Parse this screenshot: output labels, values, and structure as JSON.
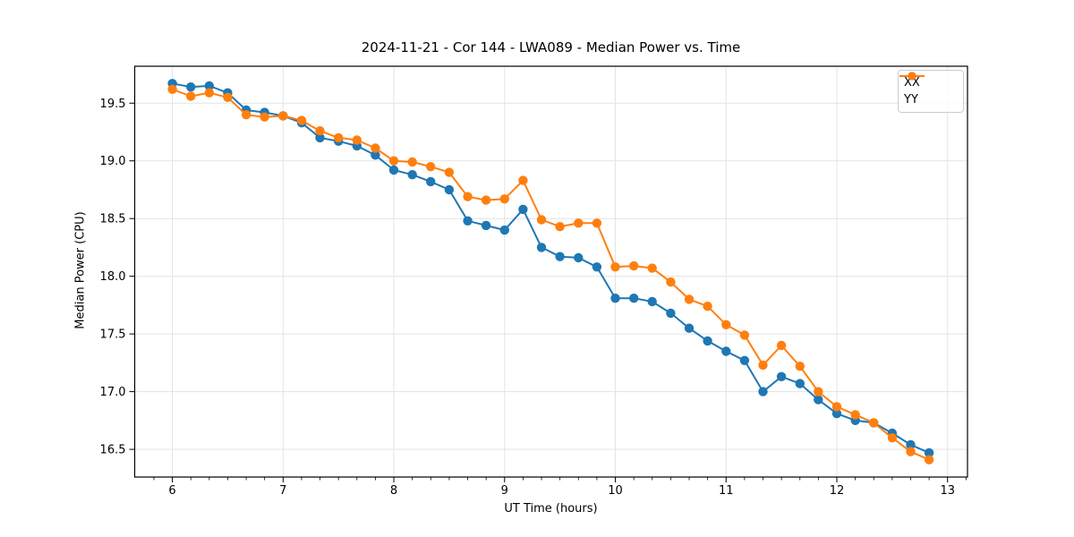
{
  "title": "2024-11-21 - Cor 144 - LWA089 - Median Power vs. Time",
  "chart_data": {
    "type": "line",
    "title": "2024-11-21 - Cor 144 - LWA089 - Median Power vs. Time",
    "xlabel": "UT Time (hours)",
    "ylabel": "Median Power (CPU)",
    "x": [
      6.0,
      6.167,
      6.333,
      6.5,
      6.667,
      6.833,
      7.0,
      7.167,
      7.333,
      7.5,
      7.667,
      7.833,
      8.0,
      8.167,
      8.333,
      8.5,
      8.667,
      8.833,
      9.0,
      9.167,
      9.333,
      9.5,
      9.667,
      9.833,
      10.0,
      10.167,
      10.333,
      10.5,
      10.667,
      10.833,
      11.0,
      11.167,
      11.333,
      11.5,
      11.667,
      11.833,
      12.0,
      12.167,
      12.333,
      12.5,
      12.667,
      12.833
    ],
    "series": [
      {
        "name": "XX",
        "color": "#1f77b4",
        "values": [
          19.67,
          19.64,
          19.65,
          19.59,
          19.44,
          19.42,
          19.39,
          19.33,
          19.2,
          19.17,
          19.13,
          19.05,
          18.92,
          18.88,
          18.82,
          18.75,
          18.48,
          18.44,
          18.4,
          18.58,
          18.25,
          18.17,
          18.16,
          18.08,
          17.81,
          17.81,
          17.78,
          17.68,
          17.55,
          17.44,
          17.35,
          17.27,
          17.0,
          17.13,
          17.07,
          16.93,
          16.81,
          16.75,
          16.73,
          16.64,
          16.54,
          16.47
        ]
      },
      {
        "name": "YY",
        "color": "#ff7f0e",
        "values": [
          19.62,
          19.56,
          19.59,
          19.55,
          19.4,
          19.38,
          19.39,
          19.35,
          19.26,
          19.2,
          19.18,
          19.11,
          19.0,
          18.99,
          18.95,
          18.9,
          18.69,
          18.66,
          18.67,
          18.83,
          18.49,
          18.43,
          18.46,
          18.46,
          18.08,
          18.09,
          18.07,
          17.95,
          17.8,
          17.74,
          17.58,
          17.49,
          17.23,
          17.4,
          17.22,
          17.0,
          16.87,
          16.8,
          16.73,
          16.6,
          16.48,
          16.41
        ]
      }
    ],
    "xlim": [
      5.66,
      13.18
    ],
    "ylim": [
      16.26,
      19.82
    ],
    "xticks": [
      6,
      7,
      8,
      9,
      10,
      11,
      12,
      13
    ],
    "xtick_labels": [
      "6",
      "7",
      "8",
      "9",
      "10",
      "11",
      "12",
      "13"
    ],
    "yticks": [
      16.5,
      17.0,
      17.5,
      18.0,
      18.5,
      19.0,
      19.5
    ],
    "ytick_labels": [
      "16.5",
      "17.0",
      "17.5",
      "18.0",
      "18.5",
      "19.0",
      "19.5"
    ],
    "minor_xtick_step": 0.166667,
    "grid": true,
    "grid_color": "#e3e3e3",
    "legend_position": "upper right",
    "marker": "circle"
  }
}
